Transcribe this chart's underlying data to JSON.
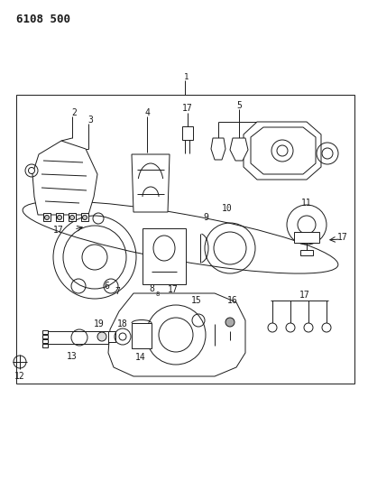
{
  "title": "6108 500",
  "bg_color": "#ffffff",
  "line_color": "#1a1a1a",
  "title_fontsize": 9,
  "label_fontsize": 7,
  "fig_width": 4.08,
  "fig_height": 5.33,
  "dpi": 100
}
